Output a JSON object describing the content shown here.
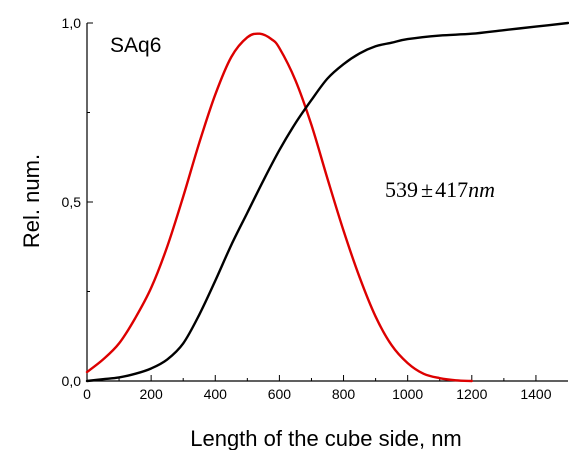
{
  "chart_data": {
    "type": "line",
    "title": "",
    "panel_label": "SAq6",
    "annotation": {
      "value": "539",
      "pm": "±",
      "err": "417",
      "unit": "nm"
    },
    "xlabel": "Length of the cube side, nm",
    "ylabel": "Rel. num.",
    "xlim": [
      0,
      1500
    ],
    "ylim": [
      0,
      1.0
    ],
    "x_ticks": [
      {
        "v": 0,
        "label": "0"
      },
      {
        "v": 200,
        "label": "200"
      },
      {
        "v": 400,
        "label": "400"
      },
      {
        "v": 600,
        "label": "600"
      },
      {
        "v": 800,
        "label": "800"
      },
      {
        "v": 1000,
        "label": "1000"
      },
      {
        "v": 1200,
        "label": "1200"
      },
      {
        "v": 1400,
        "label": "1400"
      }
    ],
    "y_ticks": [
      {
        "v": 0,
        "label": "0,0"
      },
      {
        "v": 0.5,
        "label": "0,5"
      },
      {
        "v": 1.0,
        "label": "1,0"
      }
    ],
    "grid": false,
    "series": [
      {
        "color": "#dd0000",
        "x": [
          0,
          50,
          100,
          150,
          200,
          250,
          300,
          350,
          400,
          450,
          500,
          539,
          575,
          600,
          650,
          700,
          750,
          800,
          850,
          900,
          950,
          1000,
          1050,
          1100,
          1150,
          1200
        ],
        "y": [
          0.025,
          0.06,
          0.105,
          0.175,
          0.26,
          0.375,
          0.515,
          0.665,
          0.8,
          0.905,
          0.96,
          0.97,
          0.955,
          0.93,
          0.84,
          0.715,
          0.565,
          0.42,
          0.29,
          0.18,
          0.1,
          0.05,
          0.02,
          0.008,
          0.002,
          0.0
        ]
      },
      {
        "color": "#000000",
        "x": [
          0,
          50,
          100,
          150,
          200,
          250,
          300,
          350,
          400,
          450,
          500,
          550,
          600,
          650,
          700,
          750,
          800,
          850,
          900,
          950,
          1000,
          1100,
          1200,
          1300,
          1400,
          1500
        ],
        "y": [
          0.0,
          0.005,
          0.01,
          0.02,
          0.035,
          0.06,
          0.105,
          0.185,
          0.28,
          0.38,
          0.47,
          0.56,
          0.645,
          0.72,
          0.785,
          0.845,
          0.885,
          0.915,
          0.935,
          0.945,
          0.955,
          0.965,
          0.97,
          0.98,
          0.99,
          1.0
        ]
      }
    ]
  }
}
